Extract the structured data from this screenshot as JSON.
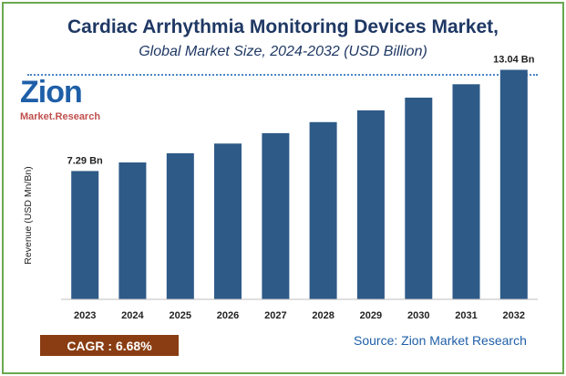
{
  "title": "Cardiac Arrhythmia Monitoring Devices Market,",
  "subtitle": "Global Market Size, 2024-2032 (USD Billion)",
  "logo": {
    "main": "Zion",
    "sub": "Market.Research"
  },
  "cagr": "CAGR :  6.68%",
  "source": "Source: Zion Market Research",
  "colors": {
    "bar": "#2e5a88",
    "title": "#1f3864",
    "cagr_bg": "#8a3d12",
    "border": "#6aa84f"
  },
  "chart_data": {
    "type": "bar",
    "categories": [
      "2023",
      "2024",
      "2025",
      "2026",
      "2027",
      "2028",
      "2029",
      "2030",
      "2031",
      "2032"
    ],
    "values": [
      7.29,
      7.78,
      8.3,
      8.85,
      9.44,
      10.07,
      10.74,
      11.46,
      12.22,
      13.04
    ],
    "data_labels": [
      {
        "index": 0,
        "text": "7.29 Bn"
      },
      {
        "index": 9,
        "text": "13.04 Bn"
      }
    ],
    "ylabel": "Revenue (USD Mn/Bn)",
    "xlabel": "",
    "ylim": [
      0,
      14
    ],
    "grid": false,
    "legend": "none"
  }
}
